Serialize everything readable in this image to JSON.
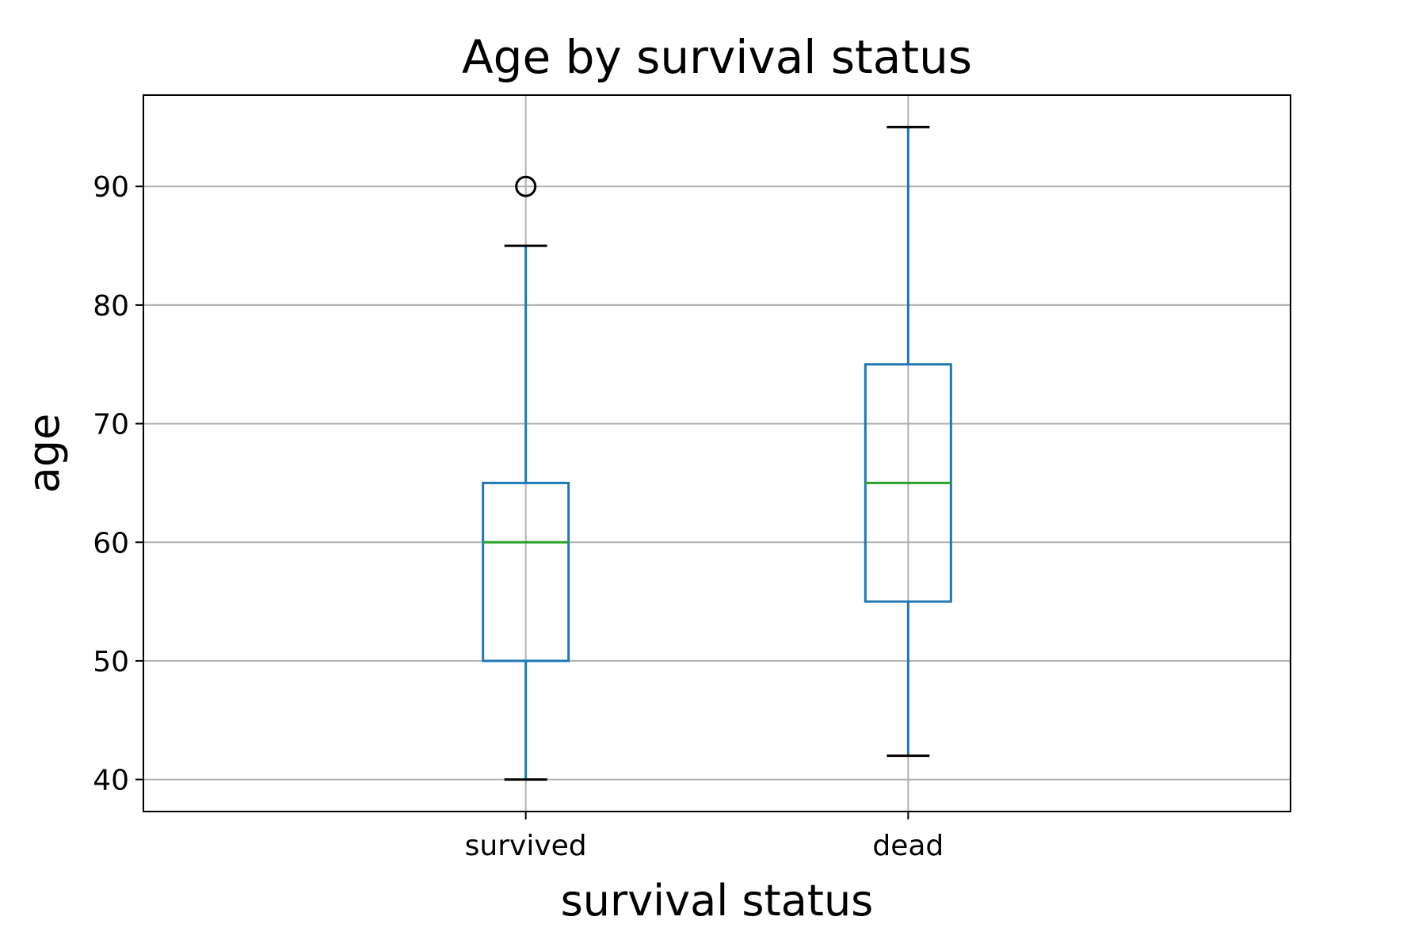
{
  "chart_data": {
    "type": "box",
    "title": "Age by survival status",
    "xlabel": "survival status",
    "ylabel": "age",
    "categories": [
      "survived",
      "dead"
    ],
    "boxes": [
      {
        "category": "survived",
        "whisker_low": 40,
        "q1": 50,
        "median": 60,
        "q3": 65,
        "whisker_high": 85,
        "outliers": [
          90
        ]
      },
      {
        "category": "dead",
        "whisker_low": 42,
        "q1": 55,
        "median": 65,
        "q3": 75,
        "whisker_high": 95,
        "outliers": []
      }
    ],
    "yticks": [
      40,
      50,
      60,
      70,
      80,
      90
    ],
    "ylim": [
      37.3,
      97.7
    ],
    "grid": true,
    "colors": {
      "box": "#1f77b4",
      "median": "#2ca02c",
      "whisker_cap": "#000000",
      "outlier": "#000000",
      "grid": "#b0b0b0"
    }
  }
}
